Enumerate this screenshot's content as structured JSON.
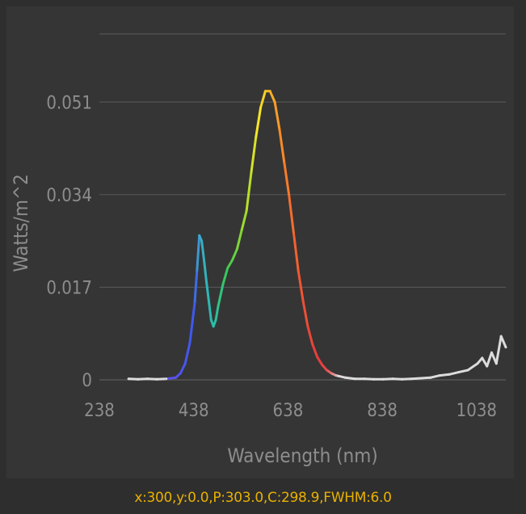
{
  "chart_data": {
    "type": "line",
    "xlabel": "Wavelength (nm)",
    "ylabel": "Watts/m^2",
    "x_ticks": [
      "238",
      "438",
      "638",
      "838",
      "1038"
    ],
    "y_ticks": [
      "0",
      "0.017",
      "0.034",
      "0.051"
    ],
    "xlim": [
      238,
      1100
    ],
    "ylim": [
      0,
      0.0635
    ],
    "grid": true,
    "colored_by_wavelength": true,
    "series": [
      {
        "x": [
          300,
          320,
          340,
          360,
          380,
          400,
          410,
          420,
          430,
          440,
          445,
          450,
          455,
          460,
          465,
          470,
          475,
          480,
          485,
          490,
          500,
          510,
          520,
          530,
          540,
          550,
          560,
          570,
          580,
          590,
          600,
          610,
          620,
          630,
          640,
          650,
          660,
          670,
          680,
          690,
          700,
          710,
          720,
          730,
          740,
          760,
          780,
          800,
          820,
          840,
          860,
          880,
          900,
          920,
          940,
          960,
          980,
          1000,
          1020,
          1040,
          1050,
          1060,
          1070,
          1080,
          1090,
          1100
        ],
        "y": [
          0.0002,
          0.0001,
          0.0002,
          0.0001,
          0.0002,
          0.0004,
          0.0012,
          0.003,
          0.0068,
          0.014,
          0.02,
          0.0265,
          0.0255,
          0.022,
          0.018,
          0.0145,
          0.011,
          0.0098,
          0.011,
          0.0135,
          0.0175,
          0.0205,
          0.022,
          0.024,
          0.0275,
          0.031,
          0.038,
          0.0445,
          0.05,
          0.053,
          0.053,
          0.051,
          0.046,
          0.04,
          0.034,
          0.027,
          0.02,
          0.0145,
          0.0098,
          0.0065,
          0.0042,
          0.0028,
          0.0018,
          0.0012,
          0.0008,
          0.0004,
          0.0002,
          0.0002,
          0.0001,
          0.0001,
          0.0002,
          0.0001,
          0.0002,
          0.0003,
          0.0004,
          0.0008,
          0.001,
          0.0014,
          0.0018,
          0.003,
          0.004,
          0.0025,
          0.005,
          0.003,
          0.008,
          0.006
        ]
      }
    ]
  },
  "status": {
    "readout": "x:300,y:0.0,P:303.0,C:298.9,FWHM:6.0"
  }
}
